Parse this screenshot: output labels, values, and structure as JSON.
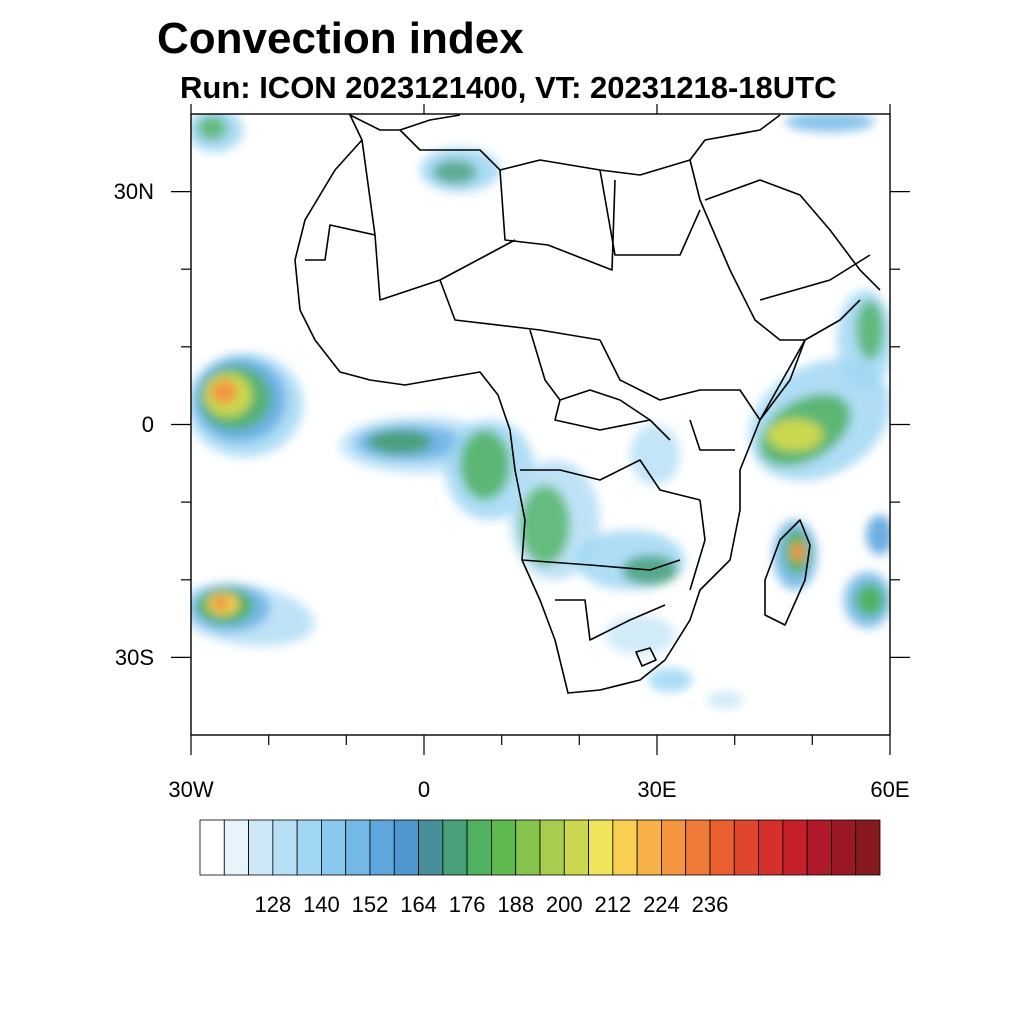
{
  "title": "Convection index",
  "subtitle": "Run: ICON 2023121400,  VT: 20231218-18UTC",
  "map": {
    "region": "Africa",
    "lon_range": [
      -30,
      60
    ],
    "lat_range": [
      -40,
      40
    ],
    "x_tick_labels": [
      "30W",
      "0",
      "30E",
      "60E"
    ],
    "y_tick_labels": [
      "30N",
      "0",
      "30S"
    ],
    "x_tick_values": [
      -30,
      0,
      30,
      60
    ],
    "y_tick_values": [
      30,
      0,
      -30
    ]
  },
  "colorbar": {
    "labels": [
      "128",
      "140",
      "152",
      "164",
      "176",
      "188",
      "200",
      "212",
      "224",
      "236"
    ],
    "colors": [
      "#ffffff",
      "#e8f4fb",
      "#cde9f7",
      "#b7e0f6",
      "#a1d7f4",
      "#8ac9ee",
      "#74b8e6",
      "#5ea6de",
      "#4f97cf",
      "#47909a",
      "#48a07a",
      "#4fb25f",
      "#5fba4d",
      "#86c34d",
      "#a8cc4e",
      "#cbd84f",
      "#f0e45a",
      "#f8cf51",
      "#f7b148",
      "#f59540",
      "#f07a38",
      "#ea5f30",
      "#e0462c",
      "#d53029",
      "#c6202a",
      "#b0192a",
      "#9a1826",
      "#871a1e"
    ]
  }
}
